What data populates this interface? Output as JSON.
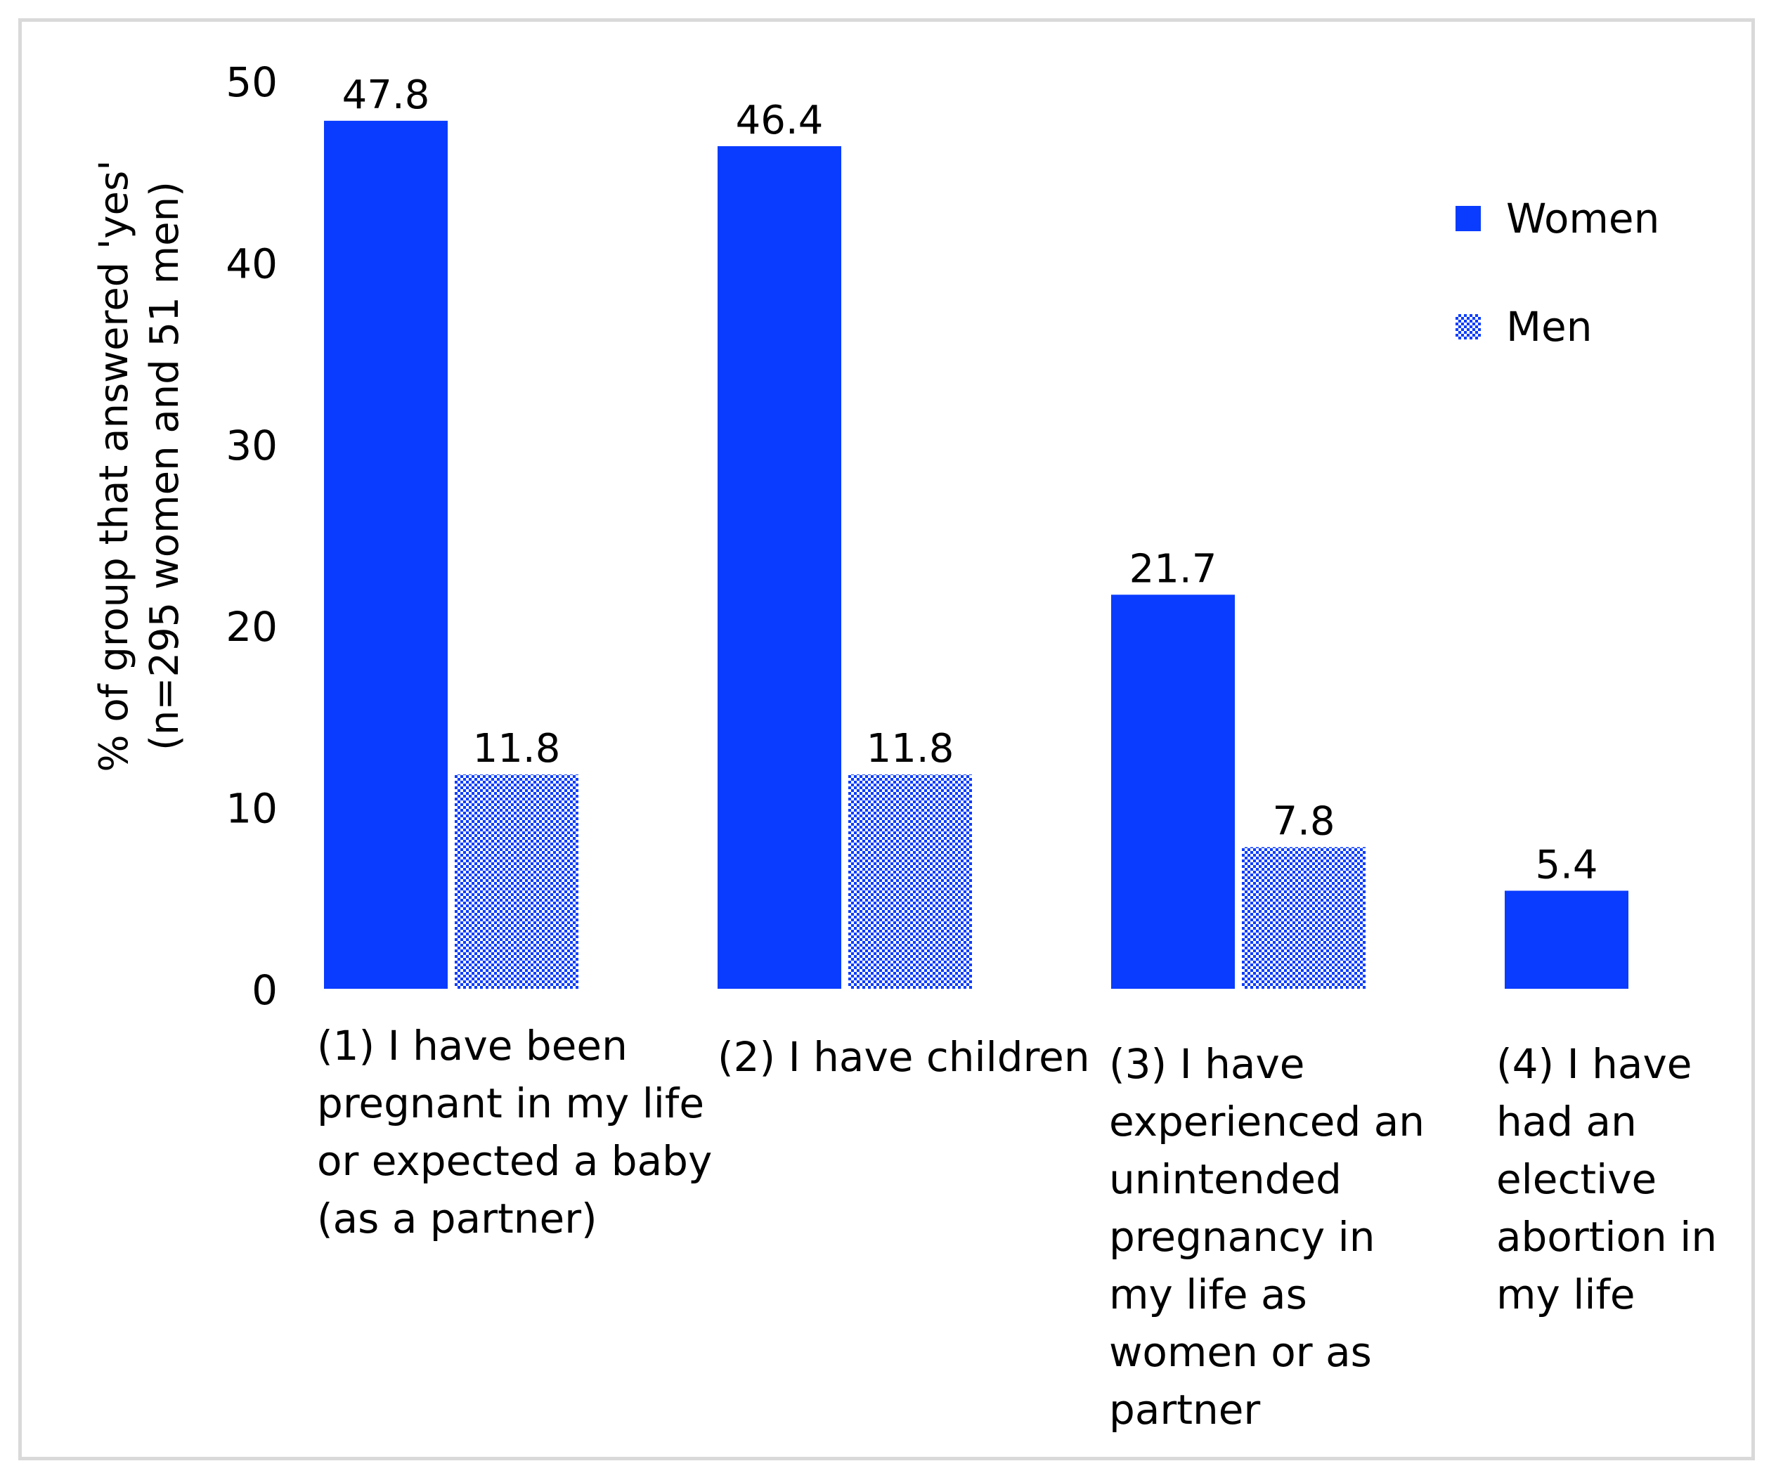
{
  "chart_data": {
    "type": "bar",
    "title": "",
    "ylabel": "% of group that answered 'yes' (n=295 women and 51 men)",
    "ylabel_lines": [
      "% of group that answered 'yes'",
      "(n=295 women and 51 men)"
    ],
    "ylim": [
      0,
      50
    ],
    "yticks": [
      0,
      10,
      20,
      30,
      40,
      50
    ],
    "categories": [
      "(1) I have been\npregnant in my life\nor expected a baby\n(as a partner)",
      "(2) I have children",
      "(3) I have\nexperienced an\nunintended\npregnancy in\nmy life as\nwomen or as\npartner",
      "(4) I have\nhad an\nelective\nabortion in\nmy life"
    ],
    "series": [
      {
        "name": "Women",
        "values": [
          47.8,
          46.4,
          21.7,
          5.4
        ],
        "labels": [
          "47.8",
          "46.4",
          "21.7",
          "5.4"
        ]
      },
      {
        "name": "Men",
        "values": [
          11.8,
          11.8,
          7.8,
          null
        ],
        "labels": [
          "11.8",
          "11.8",
          "7.8",
          ""
        ]
      }
    ],
    "legend": [
      {
        "name": "Women",
        "style": "solid"
      },
      {
        "name": "Men",
        "style": "checkered"
      }
    ],
    "legend_position": "top-right",
    "grid": false
  },
  "colors": {
    "women": "#0a3cff",
    "men_fill": "#0a3cff",
    "men_background": "#ffffff",
    "frame": "#d9d9d9"
  }
}
